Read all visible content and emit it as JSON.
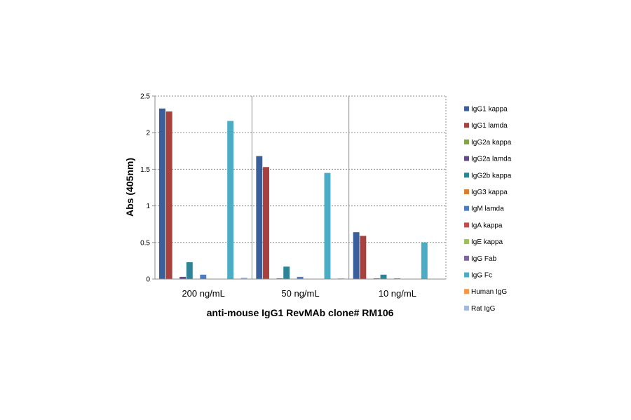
{
  "chart_data": {
    "type": "bar",
    "title": "",
    "xlabel": "anti-mouse  IgG1 RevMAb clone# RM106",
    "ylabel": "Abs (405nm)",
    "ylim": [
      0,
      2.5
    ],
    "yticks": [
      "0",
      "0.5",
      "1",
      "1.5",
      "2",
      "2.5"
    ],
    "ytick_values": [
      0,
      0.5,
      1,
      1.5,
      2,
      2.5
    ],
    "grid": true,
    "legend_position": "right",
    "categories": [
      "200 ng/mL",
      "50 ng/mL",
      "10 ng/mL"
    ],
    "series": [
      {
        "name": "IgG1 kappa",
        "color": "#3A5F9A",
        "values": [
          2.33,
          1.68,
          0.64
        ]
      },
      {
        "name": "IgG1 lamda",
        "color": "#A8403D",
        "values": [
          2.29,
          1.53,
          0.59
        ]
      },
      {
        "name": "IgG2a kappa",
        "color": "#7FA443",
        "values": [
          0.0,
          0.0,
          0.0
        ]
      },
      {
        "name": "IgG2a lamda",
        "color": "#654A8A",
        "values": [
          0.03,
          0.01,
          0.01
        ]
      },
      {
        "name": "IgG2b kappa",
        "color": "#2F8397",
        "values": [
          0.23,
          0.17,
          0.06
        ]
      },
      {
        "name": "IgG3 kappa",
        "color": "#DB7E2F",
        "values": [
          0.0,
          0.0,
          0.0
        ]
      },
      {
        "name": "IgM lamda",
        "color": "#4C7EBF",
        "values": [
          0.06,
          0.03,
          0.01
        ]
      },
      {
        "name": "IgA kappa",
        "color": "#C74B49",
        "values": [
          0.0,
          0.0,
          0.0
        ]
      },
      {
        "name": "IgE kappa",
        "color": "#9BBF59",
        "values": [
          0.0,
          0.0,
          0.0
        ]
      },
      {
        "name": "IgG Fab",
        "color": "#8064A2",
        "values": [
          0.0,
          0.0,
          0.0
        ]
      },
      {
        "name": "IgG Fc",
        "color": "#4BACC6",
        "values": [
          2.16,
          1.45,
          0.5
        ]
      },
      {
        "name": "Human IgG",
        "color": "#F79646",
        "values": [
          0.0,
          0.0,
          0.0
        ]
      },
      {
        "name": "Rat IgG",
        "color": "#A5B9DE",
        "values": [
          0.02,
          0.01,
          0.0
        ]
      }
    ]
  }
}
